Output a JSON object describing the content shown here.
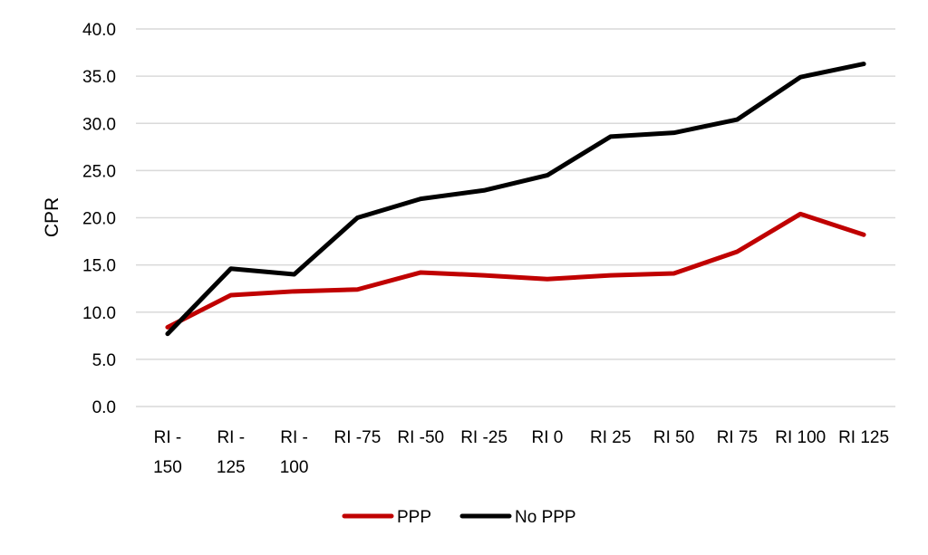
{
  "chart_data": {
    "type": "line",
    "title": "",
    "xlabel": "",
    "ylabel": "CPR",
    "ylim": [
      0,
      40
    ],
    "yticks": [
      "0.0",
      "5.0",
      "10.0",
      "15.0",
      "20.0",
      "25.0",
      "30.0",
      "35.0",
      "40.0"
    ],
    "grid": true,
    "legend_position": "bottom",
    "categories": [
      [
        "RI -",
        "150"
      ],
      [
        "RI -",
        "125"
      ],
      [
        "RI -",
        "100"
      ],
      [
        "RI -75"
      ],
      [
        "RI -50"
      ],
      [
        "RI -25"
      ],
      [
        "RI 0"
      ],
      [
        "RI 25"
      ],
      [
        "RI 50"
      ],
      [
        "RI 75"
      ],
      [
        "RI 100"
      ],
      [
        "RI 125"
      ]
    ],
    "series": [
      {
        "name": "PPP",
        "color": "#C00000",
        "values": [
          8.4,
          11.8,
          12.2,
          12.4,
          14.2,
          13.9,
          13.5,
          13.9,
          14.1,
          16.4,
          20.4,
          18.2
        ]
      },
      {
        "name": "No PPP",
        "color": "#000000",
        "values": [
          7.7,
          14.6,
          14.0,
          20.0,
          22.0,
          22.9,
          24.5,
          28.6,
          29.0,
          30.4,
          34.9,
          36.3
        ]
      }
    ]
  }
}
